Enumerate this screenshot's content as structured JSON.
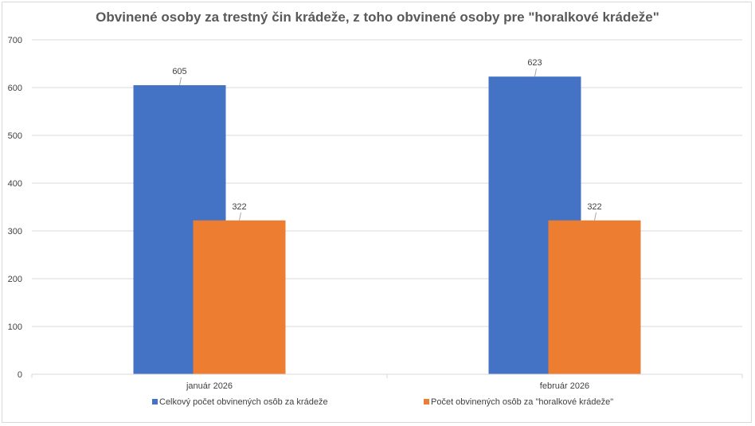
{
  "chart_data": {
    "type": "bar",
    "title": "Obvinené osoby za trestný čin krádeže, z toho obvinené osoby pre \"horalkové krádeže\"",
    "categories": [
      "január 2026",
      "február 2026"
    ],
    "series": [
      {
        "name": "Celkový počet obvinených osôb za krádeže",
        "color": "#4472c4",
        "values": [
          605,
          623
        ]
      },
      {
        "name": "Počet obvinených osôb za \"horalkové krádeže\"",
        "color": "#ed7d31",
        "values": [
          322,
          322
        ]
      }
    ],
    "ylim": [
      0,
      700
    ],
    "yticks": [
      0,
      100,
      200,
      300,
      400,
      500,
      600,
      700
    ],
    "xlabel": "",
    "ylabel": "",
    "grid": true,
    "legend_position": "bottom",
    "data_labels": true
  }
}
